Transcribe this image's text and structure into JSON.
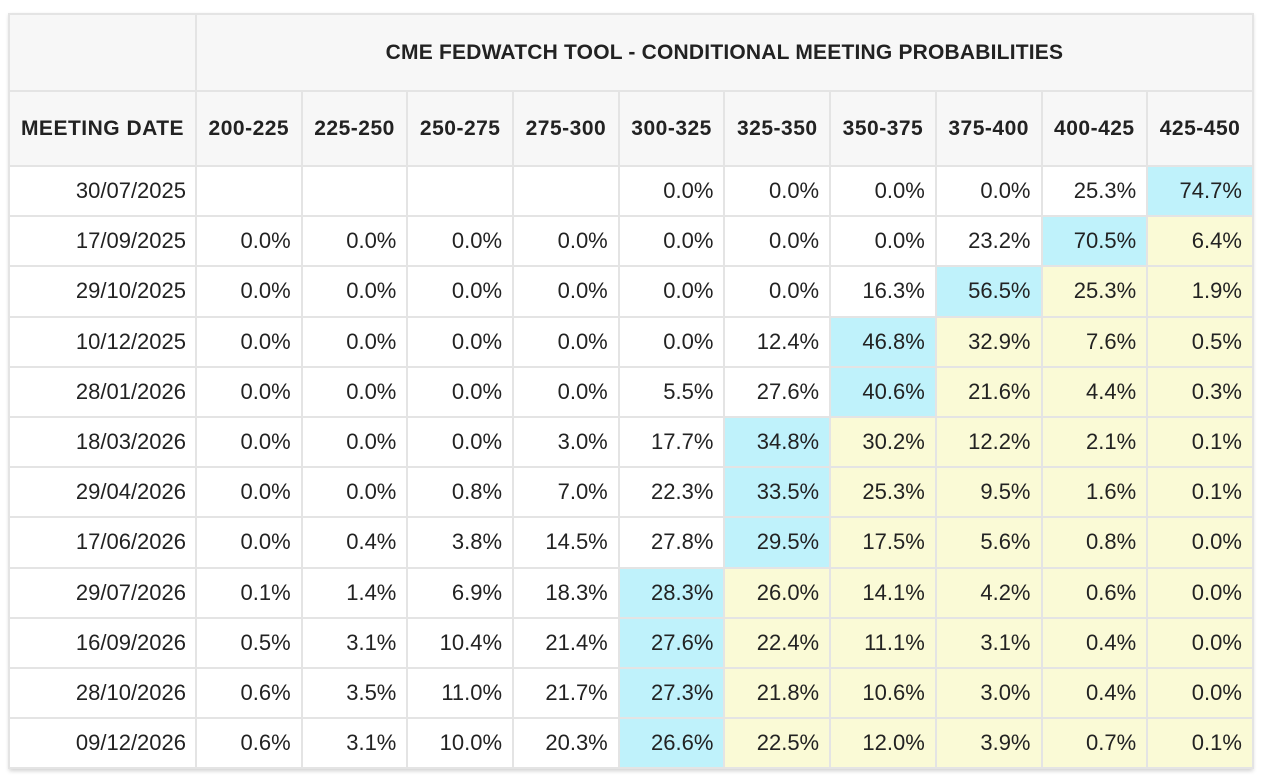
{
  "title": "CME FEDWATCH TOOL - CONDITIONAL MEETING PROBABILITIES",
  "date_header": "MEETING DATE",
  "ranges": [
    "200-225",
    "225-250",
    "250-275",
    "275-300",
    "300-325",
    "325-350",
    "350-375",
    "375-400",
    "400-425",
    "425-450"
  ],
  "colors": {
    "highlight_max": "#bff2fb",
    "highlight_above": "#fafad6",
    "header_bg": "#f7f7f7",
    "border": "#e4e4e4"
  },
  "rows": [
    {
      "date": "30/07/2025",
      "values": [
        "",
        "",
        "",
        "",
        "0.0%",
        "0.0%",
        "0.0%",
        "0.0%",
        "25.3%",
        "74.7%"
      ],
      "mode_index": 9
    },
    {
      "date": "17/09/2025",
      "values": [
        "0.0%",
        "0.0%",
        "0.0%",
        "0.0%",
        "0.0%",
        "0.0%",
        "0.0%",
        "23.2%",
        "70.5%",
        "6.4%"
      ],
      "mode_index": 8
    },
    {
      "date": "29/10/2025",
      "values": [
        "0.0%",
        "0.0%",
        "0.0%",
        "0.0%",
        "0.0%",
        "0.0%",
        "16.3%",
        "56.5%",
        "25.3%",
        "1.9%"
      ],
      "mode_index": 7
    },
    {
      "date": "10/12/2025",
      "values": [
        "0.0%",
        "0.0%",
        "0.0%",
        "0.0%",
        "0.0%",
        "12.4%",
        "46.8%",
        "32.9%",
        "7.6%",
        "0.5%"
      ],
      "mode_index": 6
    },
    {
      "date": "28/01/2026",
      "values": [
        "0.0%",
        "0.0%",
        "0.0%",
        "0.0%",
        "5.5%",
        "27.6%",
        "40.6%",
        "21.6%",
        "4.4%",
        "0.3%"
      ],
      "mode_index": 6
    },
    {
      "date": "18/03/2026",
      "values": [
        "0.0%",
        "0.0%",
        "0.0%",
        "3.0%",
        "17.7%",
        "34.8%",
        "30.2%",
        "12.2%",
        "2.1%",
        "0.1%"
      ],
      "mode_index": 5
    },
    {
      "date": "29/04/2026",
      "values": [
        "0.0%",
        "0.0%",
        "0.8%",
        "7.0%",
        "22.3%",
        "33.5%",
        "25.3%",
        "9.5%",
        "1.6%",
        "0.1%"
      ],
      "mode_index": 5
    },
    {
      "date": "17/06/2026",
      "values": [
        "0.0%",
        "0.4%",
        "3.8%",
        "14.5%",
        "27.8%",
        "29.5%",
        "17.5%",
        "5.6%",
        "0.8%",
        "0.0%"
      ],
      "mode_index": 5
    },
    {
      "date": "29/07/2026",
      "values": [
        "0.1%",
        "1.4%",
        "6.9%",
        "18.3%",
        "28.3%",
        "26.0%",
        "14.1%",
        "4.2%",
        "0.6%",
        "0.0%"
      ],
      "mode_index": 4
    },
    {
      "date": "16/09/2026",
      "values": [
        "0.5%",
        "3.1%",
        "10.4%",
        "21.4%",
        "27.6%",
        "22.4%",
        "11.1%",
        "3.1%",
        "0.4%",
        "0.0%"
      ],
      "mode_index": 4
    },
    {
      "date": "28/10/2026",
      "values": [
        "0.6%",
        "3.5%",
        "11.0%",
        "21.7%",
        "27.3%",
        "21.8%",
        "10.6%",
        "3.0%",
        "0.4%",
        "0.0%"
      ],
      "mode_index": 4
    },
    {
      "date": "09/12/2026",
      "values": [
        "0.6%",
        "3.1%",
        "10.0%",
        "20.3%",
        "26.6%",
        "22.5%",
        "12.0%",
        "3.9%",
        "0.7%",
        "0.1%"
      ],
      "mode_index": 4
    }
  ]
}
